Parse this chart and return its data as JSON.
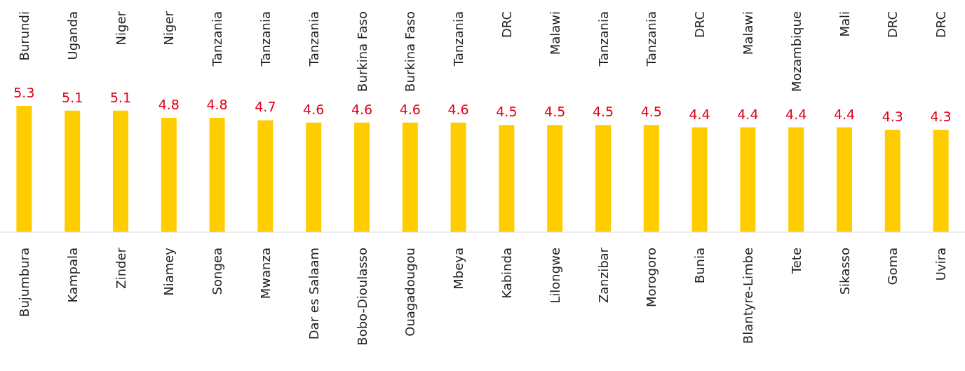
{
  "chart_data": {
    "type": "bar",
    "categories": [
      "Bujumbura",
      "Kampala",
      "Zinder",
      "Niamey",
      "Songea",
      "Mwanza",
      "Dar es Salaam",
      "Bobo-Dioulasso",
      "Ouagadougou",
      "Mbeya",
      "Kabinda",
      "Lilongwe",
      "Zanzibar",
      "Morogoro",
      "Bunia",
      "Blantyre-Limbe",
      "Tete",
      "Sikasso",
      "Goma",
      "Uvira"
    ],
    "values": [
      5.3,
      5.1,
      5.1,
      4.8,
      4.8,
      4.7,
      4.6,
      4.6,
      4.6,
      4.6,
      4.5,
      4.5,
      4.5,
      4.5,
      4.4,
      4.4,
      4.4,
      4.4,
      4.3,
      4.3
    ],
    "color": "#ffcc00",
    "data_labels": true,
    "annotations": [
      "Burundi",
      "Uganda",
      "Niger",
      "Niger",
      "Tanzania",
      "Tanzania",
      "Tanzania",
      "Burkina Faso",
      "Burkina Faso",
      "Tanzania",
      "DRC",
      "Malawi",
      "Tanzania",
      "Tanzania",
      "DRC",
      "Malawi",
      "Mozambique",
      "Mali",
      "DRC",
      "DRC"
    ]
  }
}
